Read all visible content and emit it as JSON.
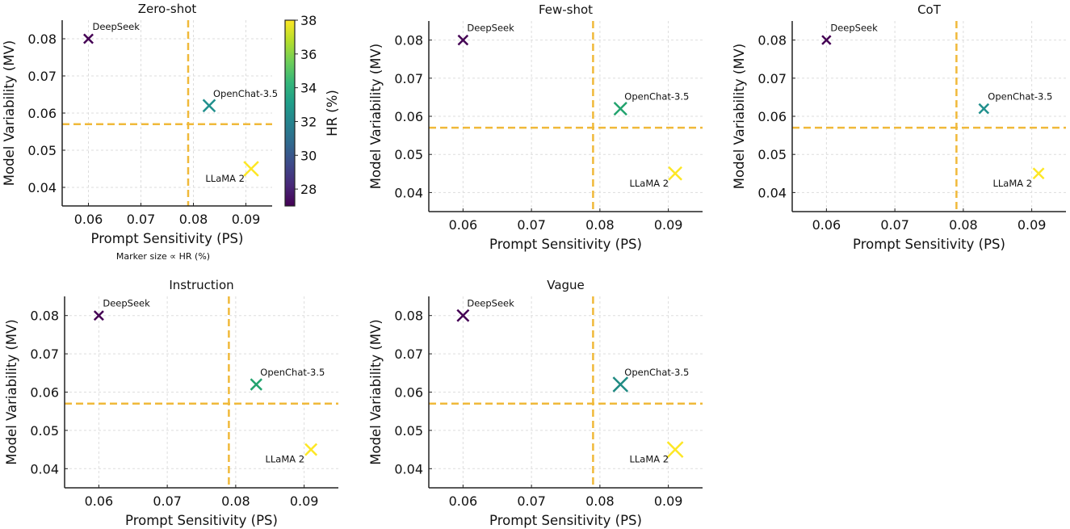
{
  "chart_data": [
    {
      "type": "scatter",
      "title": "Zero-shot",
      "xlabel": "Prompt Sensitivity (PS)",
      "ylabel": "Model Variability (MV)",
      "xlim": [
        0.055,
        0.095
      ],
      "ylim": [
        0.035,
        0.085
      ],
      "xticks": [
        "0.06",
        "0.07",
        "0.08",
        "0.09"
      ],
      "yticks": [
        "0.04",
        "0.05",
        "0.06",
        "0.07",
        "0.08"
      ],
      "grid": true,
      "vline": 0.079,
      "hline": 0.057,
      "note": "Marker size ∝ HR (%)",
      "points": [
        {
          "label": "DeepSeek",
          "x": 0.06,
          "y": 0.08,
          "hr": 27,
          "color": "#440154"
        },
        {
          "label": "OpenChat-3.5",
          "x": 0.083,
          "y": 0.062,
          "hr": 33,
          "color": "#21908d"
        },
        {
          "label": "LLaMA 2",
          "x": 0.091,
          "y": 0.045,
          "hr": 38,
          "color": "#fde725"
        }
      ],
      "colorbar": {
        "label": "HR (%)",
        "range": [
          27,
          38
        ],
        "ticks": [
          "28",
          "30",
          "32",
          "34",
          "36",
          "38"
        ]
      }
    },
    {
      "type": "scatter",
      "title": "Few-shot",
      "xlabel": "Prompt Sensitivity (PS)",
      "ylabel": "Model Variability (MV)",
      "xlim": [
        0.055,
        0.095
      ],
      "ylim": [
        0.035,
        0.085
      ],
      "xticks": [
        "0.06",
        "0.07",
        "0.08",
        "0.09"
      ],
      "yticks": [
        "0.04",
        "0.05",
        "0.06",
        "0.07",
        "0.08"
      ],
      "grid": true,
      "vline": 0.079,
      "hline": 0.057,
      "points": [
        {
          "label": "DeepSeek",
          "x": 0.06,
          "y": 0.08,
          "hr": 28,
          "color": "#440154"
        },
        {
          "label": "OpenChat-3.5",
          "x": 0.083,
          "y": 0.062,
          "hr": 34,
          "color": "#22a36e"
        },
        {
          "label": "LLaMA 2",
          "x": 0.091,
          "y": 0.045,
          "hr": 35,
          "color": "#fde725"
        }
      ]
    },
    {
      "type": "scatter",
      "title": "CoT",
      "xlabel": "Prompt Sensitivity (PS)",
      "ylabel": "Model Variability (MV)",
      "xlim": [
        0.055,
        0.095
      ],
      "ylim": [
        0.035,
        0.085
      ],
      "xticks": [
        "0.06",
        "0.07",
        "0.08",
        "0.09"
      ],
      "yticks": [
        "0.04",
        "0.05",
        "0.06",
        "0.07",
        "0.08"
      ],
      "grid": true,
      "vline": 0.079,
      "hline": 0.057,
      "points": [
        {
          "label": "DeepSeek",
          "x": 0.06,
          "y": 0.08,
          "hr": 26,
          "color": "#440154"
        },
        {
          "label": "OpenChat-3.5",
          "x": 0.083,
          "y": 0.062,
          "hr": 28,
          "color": "#21908d"
        },
        {
          "label": "LLaMA 2",
          "x": 0.091,
          "y": 0.045,
          "hr": 30,
          "color": "#fde725"
        }
      ]
    },
    {
      "type": "scatter",
      "title": "Instruction",
      "xlabel": "Prompt Sensitivity (PS)",
      "ylabel": "Model Variability (MV)",
      "xlim": [
        0.055,
        0.095
      ],
      "ylim": [
        0.035,
        0.085
      ],
      "xticks": [
        "0.06",
        "0.07",
        "0.08",
        "0.09"
      ],
      "yticks": [
        "0.04",
        "0.05",
        "0.06",
        "0.07",
        "0.08"
      ],
      "grid": true,
      "vline": 0.079,
      "hline": 0.057,
      "points": [
        {
          "label": "DeepSeek",
          "x": 0.06,
          "y": 0.08,
          "hr": 27,
          "color": "#440154"
        },
        {
          "label": "OpenChat-3.5",
          "x": 0.083,
          "y": 0.062,
          "hr": 31,
          "color": "#22a36e"
        },
        {
          "label": "LLaMA 2",
          "x": 0.091,
          "y": 0.045,
          "hr": 32,
          "color": "#fde725"
        }
      ]
    },
    {
      "type": "scatter",
      "title": "Vague",
      "xlabel": "Prompt Sensitivity (PS)",
      "ylabel": "Model Variability (MV)",
      "xlim": [
        0.055,
        0.095
      ],
      "ylim": [
        0.035,
        0.085
      ],
      "xticks": [
        "0.06",
        "0.07",
        "0.08",
        "0.09"
      ],
      "yticks": [
        "0.04",
        "0.05",
        "0.06",
        "0.07",
        "0.08"
      ],
      "grid": true,
      "vline": 0.079,
      "hline": 0.057,
      "points": [
        {
          "label": "DeepSeek",
          "x": 0.06,
          "y": 0.08,
          "hr": 32,
          "color": "#440154"
        },
        {
          "label": "OpenChat-3.5",
          "x": 0.083,
          "y": 0.062,
          "hr": 38,
          "color": "#1f8a82"
        },
        {
          "label": "LLaMA 2",
          "x": 0.091,
          "y": 0.045,
          "hr": 40,
          "color": "#fde725"
        }
      ]
    }
  ]
}
